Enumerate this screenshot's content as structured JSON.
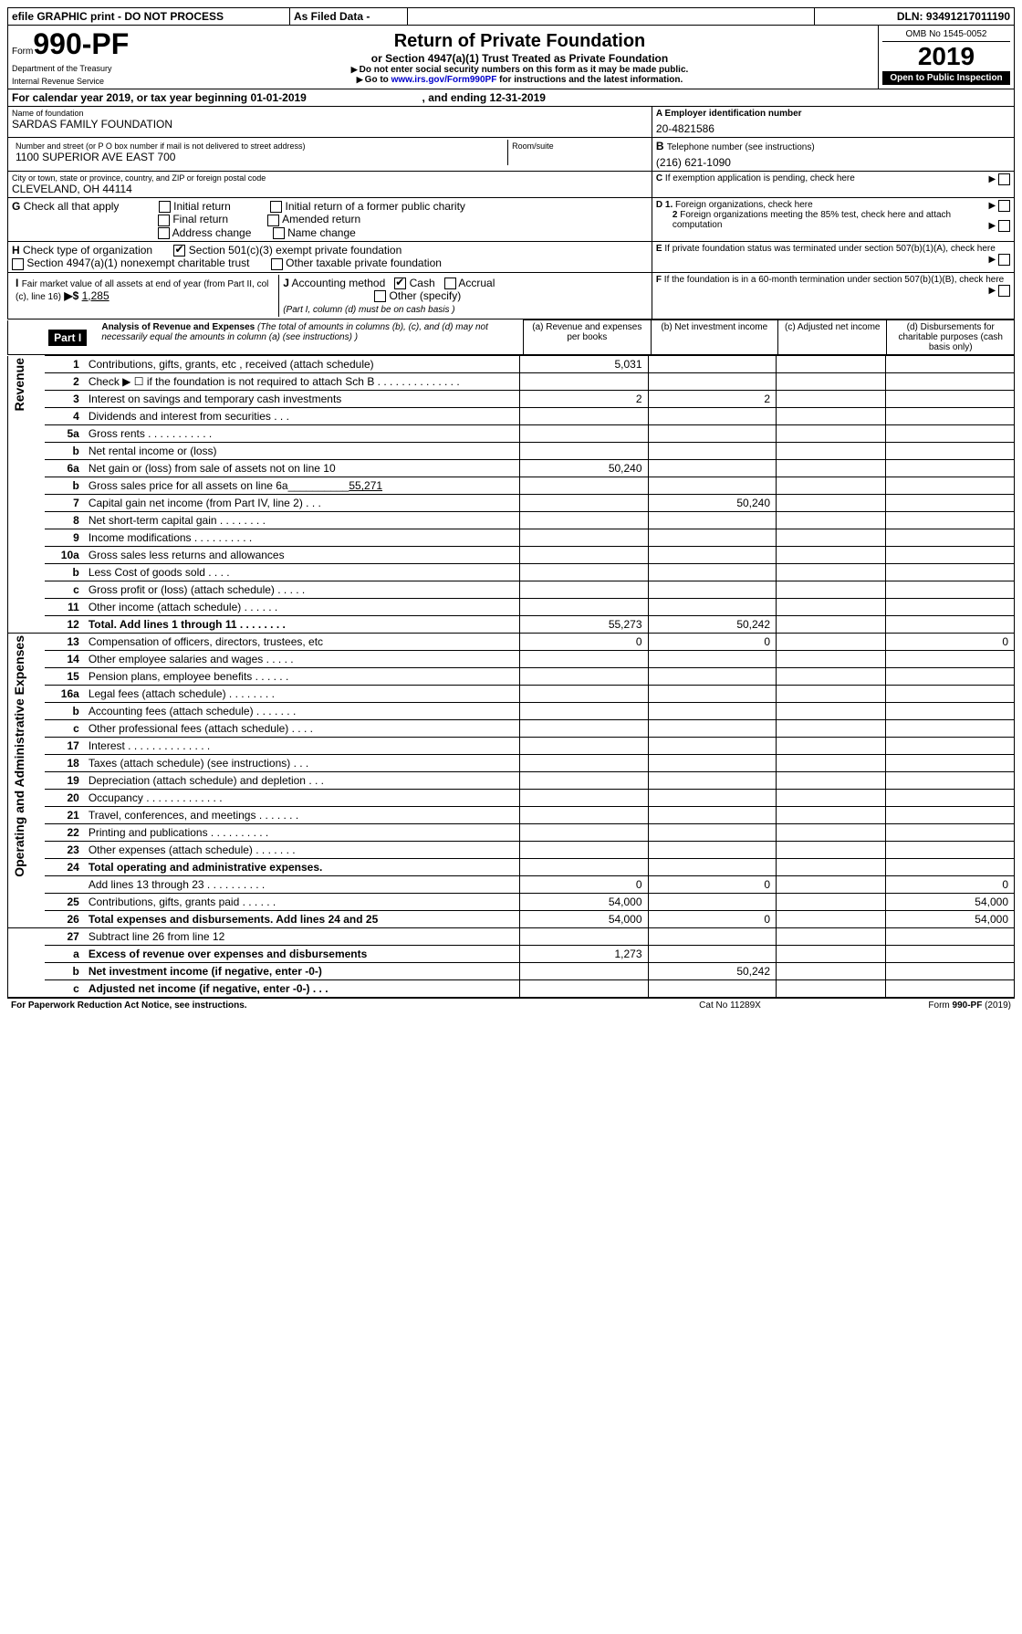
{
  "header": {
    "efile_text": "efile GRAPHIC print - DO NOT PROCESS",
    "as_filed": "As Filed Data -",
    "dln_label": "DLN:",
    "dln": "93491217011190",
    "form_prefix": "Form",
    "form_no": "990-PF",
    "dept": "Department of the Treasury",
    "irs": "Internal Revenue Service",
    "title": "Return of Private Foundation",
    "subtitle": "or Section 4947(a)(1) Trust Treated as Private Foundation",
    "warn1": "Do not enter social security numbers on this form as it may be made public.",
    "warn2_prefix": "Go to ",
    "warn2_link": "www.irs.gov/Form990PF",
    "warn2_suffix": " for instructions and the latest information.",
    "omb": "OMB No 1545-0052",
    "year": "2019",
    "open": "Open to Public Inspection"
  },
  "cal": {
    "line_prefix": "For calendar year 2019, or tax year beginning ",
    "begin": "01-01-2019",
    "mid": ", and ending ",
    "end": "12-31-2019"
  },
  "info": {
    "name_label": "Name of foundation",
    "name": "SARDAS FAMILY FOUNDATION",
    "addr_label": "Number and street (or P O  box number if mail is not delivered to street address)",
    "addr": "1100 SUPERIOR AVE EAST 700",
    "room_label": "Room/suite",
    "city_label": "City or town, state or province, country, and ZIP or foreign postal code",
    "city": "CLEVELAND, OH  44114",
    "a_label": "A Employer identification number",
    "a_val": "20-4821586",
    "b_label": "B",
    "b_text": "Telephone number (see instructions)",
    "b_val": "(216) 621-1090",
    "c_label": "C",
    "c_text": "If exemption application is pending, check here"
  },
  "g": {
    "label": "G",
    "text": "Check all that apply",
    "opt1": "Initial return",
    "opt2": "Initial return of a former public charity",
    "opt3": "Final return",
    "opt4": "Amended return",
    "opt5": "Address change",
    "opt6": "Name change"
  },
  "h": {
    "label": "H",
    "text": "Check type of organization",
    "opt1": "Section 501(c)(3) exempt private foundation",
    "opt2": "Section 4947(a)(1) nonexempt charitable trust",
    "opt3": "Other taxable private foundation"
  },
  "d": {
    "d1": "D 1.",
    "d1_text": "Foreign organizations, check here",
    "d2": "2",
    "d2_text": "Foreign organizations meeting the 85% test, check here and attach computation"
  },
  "e": {
    "label": "E",
    "text": "If private foundation status was terminated under section 507(b)(1)(A), check here"
  },
  "f": {
    "label": "F",
    "text": "If the foundation is in a 60-month termination under section 507(b)(1)(B), check here"
  },
  "i": {
    "label": "I",
    "text": "Fair market value of all assets at end of year (from Part II, col  (c), line 16)",
    "arrow": "▶$",
    "val": "1,285"
  },
  "j": {
    "label": "J",
    "text": "Accounting method",
    "cash": "Cash",
    "accrual": "Accrual",
    "other": "Other (specify)",
    "note": "(Part I, column (d) must be on cash basis )"
  },
  "part1": {
    "label": "Part I",
    "title": "Analysis of Revenue and Expenses",
    "title_note": "(The total of amounts in columns (b), (c), and (d) may not necessarily equal the amounts in column (a) (see instructions) )",
    "col_a": "(a)   Revenue and expenses per books",
    "col_b": "(b)  Net investment income",
    "col_c": "(c)  Adjusted net income",
    "col_d": "(d)  Disbursements for charitable purposes (cash basis only)"
  },
  "sections": {
    "revenue": "Revenue",
    "expenses": "Operating and Administrative Expenses"
  },
  "rows": [
    {
      "n": "1",
      "d": "Contributions, gifts, grants, etc , received (attach schedule)",
      "a": "5,031"
    },
    {
      "n": "2",
      "d": "Check ▶ ☐ if the foundation is not required to attach Sch B   .   .   .   .   .   .   .   .   .   .   .   .   .   ."
    },
    {
      "n": "3",
      "d": "Interest on savings and temporary cash investments",
      "a": "2",
      "b": "2"
    },
    {
      "n": "4",
      "d": "Dividends and interest from securities    .   .   ."
    },
    {
      "n": "5a",
      "d": "Gross rents    .   .   .   .   .   .   .   .   .   .   ."
    },
    {
      "n": "b",
      "d": "Net rental income or (loss)  "
    },
    {
      "n": "6a",
      "d": "Net gain or (loss) from sale of assets not on line 10",
      "a": "50,240"
    },
    {
      "n": "b",
      "d": "Gross sales price for all assets on line 6a__________",
      "extra": "55,271"
    },
    {
      "n": "7",
      "d": "Capital gain net income (from Part IV, line 2)   .   .   .",
      "b": "50,240"
    },
    {
      "n": "8",
      "d": "Net short-term capital gain  .   .   .   .   .   .   .   ."
    },
    {
      "n": "9",
      "d": "Income modifications .   .   .   .   .   .   .   .   .   ."
    },
    {
      "n": "10a",
      "d": "Gross sales less returns and allowances"
    },
    {
      "n": "b",
      "d": "Less  Cost of goods sold    .   .   .   ."
    },
    {
      "n": "c",
      "d": "Gross profit or (loss) (attach schedule)    .   .   .   .   ."
    },
    {
      "n": "11",
      "d": "Other income (attach schedule)    .   .   .   .   .   ."
    },
    {
      "n": "12",
      "d": "Total. Add lines 1 through 11   .   .   .   .   .   .   .   .",
      "a": "55,273",
      "b": "50,242",
      "bold": true
    },
    {
      "n": "13",
      "d": "Compensation of officers, directors, trustees, etc",
      "a": "0",
      "b": "0",
      "dd": "0"
    },
    {
      "n": "14",
      "d": "Other employee salaries and wages    .   .   .   .   ."
    },
    {
      "n": "15",
      "d": "Pension plans, employee benefits  .   .   .   .   .   ."
    },
    {
      "n": "16a",
      "d": "Legal fees (attach schedule) .   .   .   .   .   .   .   ."
    },
    {
      "n": "b",
      "d": "Accounting fees (attach schedule) .   .   .   .   .   .   ."
    },
    {
      "n": "c",
      "d": "Other professional fees (attach schedule)    .   .   .   ."
    },
    {
      "n": "17",
      "d": "Interest  .   .   .   .   .   .   .   .   .   .   .   .   .   ."
    },
    {
      "n": "18",
      "d": "Taxes (attach schedule) (see instructions)     .   .   ."
    },
    {
      "n": "19",
      "d": "Depreciation (attach schedule) and depletion   .   .   ."
    },
    {
      "n": "20",
      "d": "Occupancy   .   .   .   .   .   .   .   .   .   .   .   .   ."
    },
    {
      "n": "21",
      "d": "Travel, conferences, and meetings .   .   .   .   .   .   ."
    },
    {
      "n": "22",
      "d": "Printing and publications .   .   .   .   .   .   .   .   .   ."
    },
    {
      "n": "23",
      "d": "Other expenses (attach schedule) .   .   .   .   .   .   ."
    },
    {
      "n": "24",
      "d": "Total operating and administrative expenses.",
      "bold": true
    },
    {
      "n": "",
      "d": "Add lines 13 through 23  .   .   .   .   .   .   .   .   .   .",
      "a": "0",
      "b": "0",
      "dd": "0"
    },
    {
      "n": "25",
      "d": "Contributions, gifts, grants paid     .   .   .   .   .   .",
      "a": "54,000",
      "dd": "54,000"
    },
    {
      "n": "26",
      "d": "Total expenses and disbursements. Add lines 24 and 25",
      "a": "54,000",
      "b": "0",
      "dd": "54,000",
      "bold": true
    },
    {
      "n": "27",
      "d": "Subtract line 26 from line 12"
    },
    {
      "n": "a",
      "d": "Excess of revenue over expenses and disbursements",
      "a": "1,273",
      "bold": true
    },
    {
      "n": "b",
      "d": "Net investment income (if negative, enter -0-)",
      "b": "50,242",
      "bold": true
    },
    {
      "n": "c",
      "d": "Adjusted net income (if negative, enter -0-)  .   .   .",
      "bold": true
    }
  ],
  "footer": {
    "left": "For Paperwork Reduction Act Notice, see instructions.",
    "mid": "Cat  No  11289X",
    "right": "Form 990-PF (2019)"
  }
}
